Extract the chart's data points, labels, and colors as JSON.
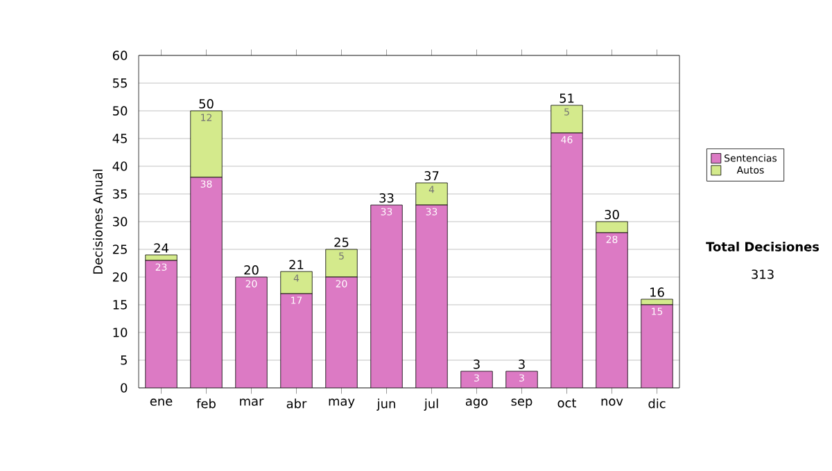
{
  "chart_data": {
    "type": "bar",
    "stacked": true,
    "ylabel": "Decisiones Anual",
    "categories": [
      "ene",
      "feb",
      "mar",
      "abr",
      "may",
      "jun",
      "jul",
      "ago",
      "sep",
      "oct",
      "nov",
      "dic"
    ],
    "series": [
      {
        "name": "Sentencias",
        "color": "#dc7ac4",
        "values": [
          23,
          38,
          20,
          17,
          20,
          33,
          33,
          3,
          3,
          46,
          28,
          15
        ],
        "value_labels": [
          "23",
          "38",
          "20",
          "17",
          "20",
          "33",
          "33",
          "3",
          "3",
          "46",
          "28",
          "15"
        ]
      },
      {
        "name": "Autos",
        "color": "#d4ea8c",
        "values": [
          1,
          12,
          0,
          4,
          5,
          0,
          4,
          0,
          0,
          5,
          2,
          1
        ],
        "value_labels": [
          null,
          "12",
          null,
          "4",
          "5",
          null,
          "4",
          null,
          null,
          "5",
          null,
          null
        ]
      }
    ],
    "totals": [
      "24",
      "50",
      "20",
      "21",
      "25",
      "33",
      "37",
      "3",
      "3",
      "51",
      "30",
      "16"
    ],
    "ylim": [
      0,
      60
    ],
    "yticks": [
      0,
      5,
      10,
      15,
      20,
      25,
      30,
      35,
      40,
      45,
      50,
      55,
      60
    ],
    "grid": "y",
    "legend": "right",
    "annotations": [
      "Total Decisiones",
      "313"
    ]
  }
}
